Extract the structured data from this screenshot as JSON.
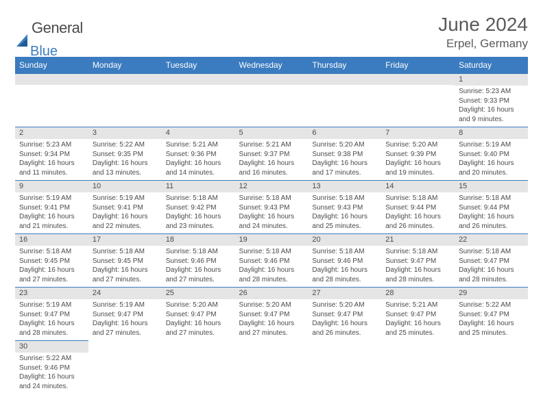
{
  "brand": {
    "left": "General",
    "right": "Blue"
  },
  "title": "June 2024",
  "location": "Erpel, Germany",
  "colors": {
    "header_bg": "#3b7bbf",
    "header_text": "#ffffff",
    "day_bar_bg": "#e5e5e5",
    "border": "#3b7bbf",
    "text": "#4a4a4a"
  },
  "day_headers": [
    "Sunday",
    "Monday",
    "Tuesday",
    "Wednesday",
    "Thursday",
    "Friday",
    "Saturday"
  ],
  "weeks": [
    [
      null,
      null,
      null,
      null,
      null,
      null,
      {
        "n": "1",
        "sr": "Sunrise: 5:23 AM",
        "ss": "Sunset: 9:33 PM",
        "d1": "Daylight: 16 hours",
        "d2": "and 9 minutes."
      }
    ],
    [
      {
        "n": "2",
        "sr": "Sunrise: 5:23 AM",
        "ss": "Sunset: 9:34 PM",
        "d1": "Daylight: 16 hours",
        "d2": "and 11 minutes."
      },
      {
        "n": "3",
        "sr": "Sunrise: 5:22 AM",
        "ss": "Sunset: 9:35 PM",
        "d1": "Daylight: 16 hours",
        "d2": "and 13 minutes."
      },
      {
        "n": "4",
        "sr": "Sunrise: 5:21 AM",
        "ss": "Sunset: 9:36 PM",
        "d1": "Daylight: 16 hours",
        "d2": "and 14 minutes."
      },
      {
        "n": "5",
        "sr": "Sunrise: 5:21 AM",
        "ss": "Sunset: 9:37 PM",
        "d1": "Daylight: 16 hours",
        "d2": "and 16 minutes."
      },
      {
        "n": "6",
        "sr": "Sunrise: 5:20 AM",
        "ss": "Sunset: 9:38 PM",
        "d1": "Daylight: 16 hours",
        "d2": "and 17 minutes."
      },
      {
        "n": "7",
        "sr": "Sunrise: 5:20 AM",
        "ss": "Sunset: 9:39 PM",
        "d1": "Daylight: 16 hours",
        "d2": "and 19 minutes."
      },
      {
        "n": "8",
        "sr": "Sunrise: 5:19 AM",
        "ss": "Sunset: 9:40 PM",
        "d1": "Daylight: 16 hours",
        "d2": "and 20 minutes."
      }
    ],
    [
      {
        "n": "9",
        "sr": "Sunrise: 5:19 AM",
        "ss": "Sunset: 9:41 PM",
        "d1": "Daylight: 16 hours",
        "d2": "and 21 minutes."
      },
      {
        "n": "10",
        "sr": "Sunrise: 5:19 AM",
        "ss": "Sunset: 9:41 PM",
        "d1": "Daylight: 16 hours",
        "d2": "and 22 minutes."
      },
      {
        "n": "11",
        "sr": "Sunrise: 5:18 AM",
        "ss": "Sunset: 9:42 PM",
        "d1": "Daylight: 16 hours",
        "d2": "and 23 minutes."
      },
      {
        "n": "12",
        "sr": "Sunrise: 5:18 AM",
        "ss": "Sunset: 9:43 PM",
        "d1": "Daylight: 16 hours",
        "d2": "and 24 minutes."
      },
      {
        "n": "13",
        "sr": "Sunrise: 5:18 AM",
        "ss": "Sunset: 9:43 PM",
        "d1": "Daylight: 16 hours",
        "d2": "and 25 minutes."
      },
      {
        "n": "14",
        "sr": "Sunrise: 5:18 AM",
        "ss": "Sunset: 9:44 PM",
        "d1": "Daylight: 16 hours",
        "d2": "and 26 minutes."
      },
      {
        "n": "15",
        "sr": "Sunrise: 5:18 AM",
        "ss": "Sunset: 9:44 PM",
        "d1": "Daylight: 16 hours",
        "d2": "and 26 minutes."
      }
    ],
    [
      {
        "n": "16",
        "sr": "Sunrise: 5:18 AM",
        "ss": "Sunset: 9:45 PM",
        "d1": "Daylight: 16 hours",
        "d2": "and 27 minutes."
      },
      {
        "n": "17",
        "sr": "Sunrise: 5:18 AM",
        "ss": "Sunset: 9:45 PM",
        "d1": "Daylight: 16 hours",
        "d2": "and 27 minutes."
      },
      {
        "n": "18",
        "sr": "Sunrise: 5:18 AM",
        "ss": "Sunset: 9:46 PM",
        "d1": "Daylight: 16 hours",
        "d2": "and 27 minutes."
      },
      {
        "n": "19",
        "sr": "Sunrise: 5:18 AM",
        "ss": "Sunset: 9:46 PM",
        "d1": "Daylight: 16 hours",
        "d2": "and 28 minutes."
      },
      {
        "n": "20",
        "sr": "Sunrise: 5:18 AM",
        "ss": "Sunset: 9:46 PM",
        "d1": "Daylight: 16 hours",
        "d2": "and 28 minutes."
      },
      {
        "n": "21",
        "sr": "Sunrise: 5:18 AM",
        "ss": "Sunset: 9:47 PM",
        "d1": "Daylight: 16 hours",
        "d2": "and 28 minutes."
      },
      {
        "n": "22",
        "sr": "Sunrise: 5:18 AM",
        "ss": "Sunset: 9:47 PM",
        "d1": "Daylight: 16 hours",
        "d2": "and 28 minutes."
      }
    ],
    [
      {
        "n": "23",
        "sr": "Sunrise: 5:19 AM",
        "ss": "Sunset: 9:47 PM",
        "d1": "Daylight: 16 hours",
        "d2": "and 28 minutes."
      },
      {
        "n": "24",
        "sr": "Sunrise: 5:19 AM",
        "ss": "Sunset: 9:47 PM",
        "d1": "Daylight: 16 hours",
        "d2": "and 27 minutes."
      },
      {
        "n": "25",
        "sr": "Sunrise: 5:20 AM",
        "ss": "Sunset: 9:47 PM",
        "d1": "Daylight: 16 hours",
        "d2": "and 27 minutes."
      },
      {
        "n": "26",
        "sr": "Sunrise: 5:20 AM",
        "ss": "Sunset: 9:47 PM",
        "d1": "Daylight: 16 hours",
        "d2": "and 27 minutes."
      },
      {
        "n": "27",
        "sr": "Sunrise: 5:20 AM",
        "ss": "Sunset: 9:47 PM",
        "d1": "Daylight: 16 hours",
        "d2": "and 26 minutes."
      },
      {
        "n": "28",
        "sr": "Sunrise: 5:21 AM",
        "ss": "Sunset: 9:47 PM",
        "d1": "Daylight: 16 hours",
        "d2": "and 25 minutes."
      },
      {
        "n": "29",
        "sr": "Sunrise: 5:22 AM",
        "ss": "Sunset: 9:47 PM",
        "d1": "Daylight: 16 hours",
        "d2": "and 25 minutes."
      }
    ],
    [
      {
        "n": "30",
        "sr": "Sunrise: 5:22 AM",
        "ss": "Sunset: 9:46 PM",
        "d1": "Daylight: 16 hours",
        "d2": "and 24 minutes."
      },
      null,
      null,
      null,
      null,
      null,
      null
    ]
  ]
}
